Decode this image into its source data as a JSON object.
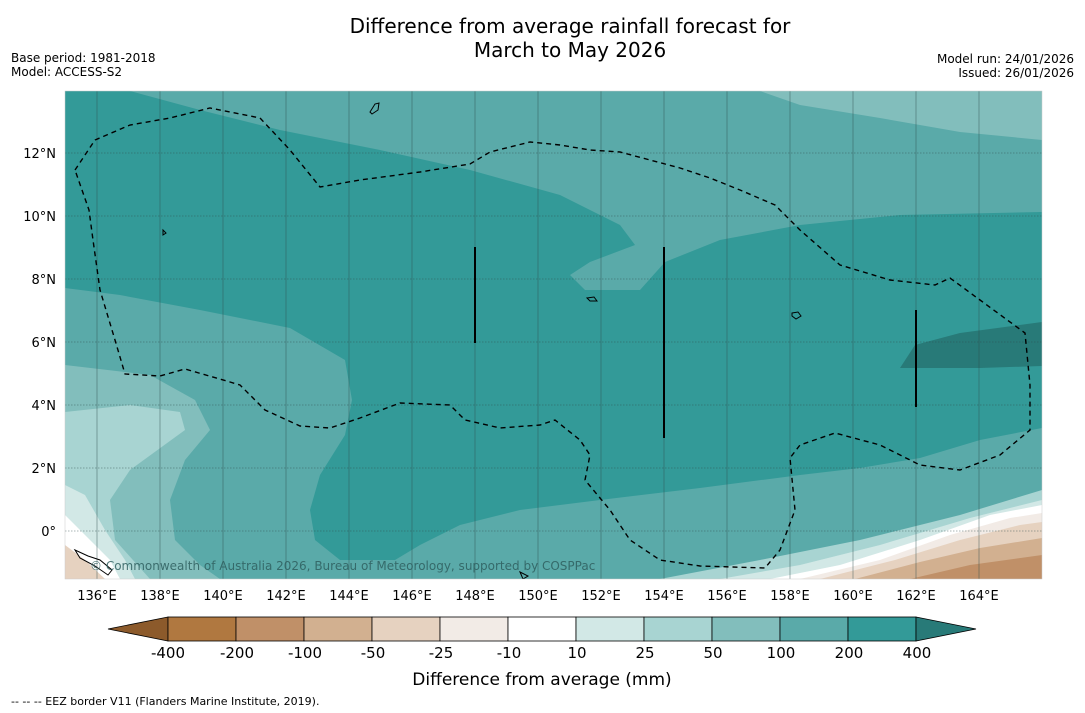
{
  "title": {
    "line1": "Difference from average rainfall forecast for",
    "line2": "March to May 2026"
  },
  "meta_left": {
    "base_period": "Base period: 1981-2018",
    "model": "Model: ACCESS-S2"
  },
  "meta_right": {
    "model_run": "Model run: 24/01/2026",
    "issued": "Issued: 26/01/2026"
  },
  "map": {
    "lat_labels": [
      "12°N",
      "10°N",
      "8°N",
      "6°N",
      "4°N",
      "2°N",
      "0°"
    ],
    "lon_labels": [
      "136°E",
      "138°E",
      "140°E",
      "142°E",
      "144°E",
      "146°E",
      "148°E",
      "150°E",
      "152°E",
      "154°E",
      "156°E",
      "158°E",
      "160°E",
      "162°E",
      "164°E"
    ],
    "watermark": "© Commonwealth of Australia 2026, Bureau of Meteorology, supported by COSPPac"
  },
  "colorbar": {
    "ticks": [
      "-400",
      "-200",
      "-100",
      "-50",
      "-25",
      "-10",
      "10",
      "25",
      "50",
      "100",
      "200",
      "400"
    ],
    "colors": [
      "#8c5a2b",
      "#b07840",
      "#c09068",
      "#d2b090",
      "#e6d2c0",
      "#f2ebe6",
      "#ffffff",
      "#d2e8e6",
      "#a8d4d2",
      "#82bebc",
      "#5aaaa9",
      "#339a98",
      "#287a78"
    ],
    "label": "Difference from average (mm)"
  },
  "footnote": "-- -- -- EEZ border V11 (Flanders Marine Institute, 2019)."
}
